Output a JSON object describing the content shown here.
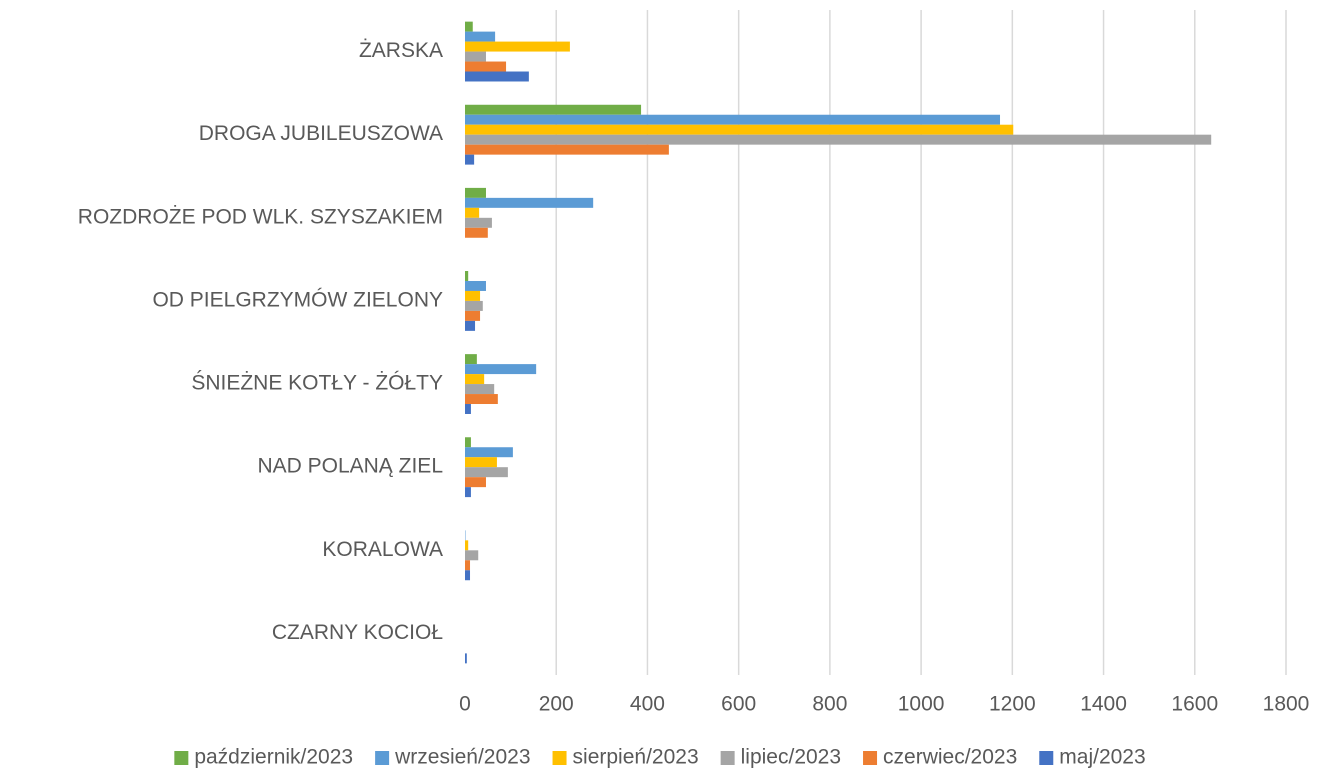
{
  "chart_data": {
    "type": "hbar",
    "categories": [
      "ŻARSKA",
      "DROGA JUBILEUSZOWA",
      "ROZDROŻE POD WLK. SZYSZAKIEM",
      "OD PIELGRZYMÓW ZIELONY",
      "ŚNIEŻNE KOTŁY - ŻÓŁTY",
      "NAD POLANĄ ZIEL",
      "KORALOWA",
      "CZARNY KOCIOŁ"
    ],
    "series": [
      {
        "name": "październik/2023",
        "color": "#70ad47",
        "values": [
          17,
          386,
          46,
          7,
          26,
          13,
          0,
          0
        ]
      },
      {
        "name": "wrzesień/2023",
        "color": "#5b9bd5",
        "values": [
          66,
          1173,
          281,
          46,
          156,
          105,
          1,
          0
        ]
      },
      {
        "name": "sierpień/2023",
        "color": "#ffc000",
        "values": [
          230,
          1202,
          31,
          33,
          42,
          70,
          7,
          0
        ]
      },
      {
        "name": "lipiec/2023",
        "color": "#a5a5a5",
        "values": [
          46,
          1636,
          59,
          39,
          64,
          94,
          29,
          0
        ]
      },
      {
        "name": "czerwiec/2023",
        "color": "#ed7d31",
        "values": [
          90,
          447,
          50,
          33,
          72,
          46,
          11,
          0
        ]
      },
      {
        "name": "maj/2023",
        "color": "#4472c4",
        "values": [
          140,
          20,
          0,
          22,
          13,
          13,
          11,
          4
        ]
      }
    ],
    "xlim": [
      0,
      1800
    ],
    "xticks": [
      0,
      200,
      400,
      600,
      800,
      1000,
      1200,
      1400,
      1600,
      1800
    ],
    "grid": true,
    "legend": "bottom"
  }
}
